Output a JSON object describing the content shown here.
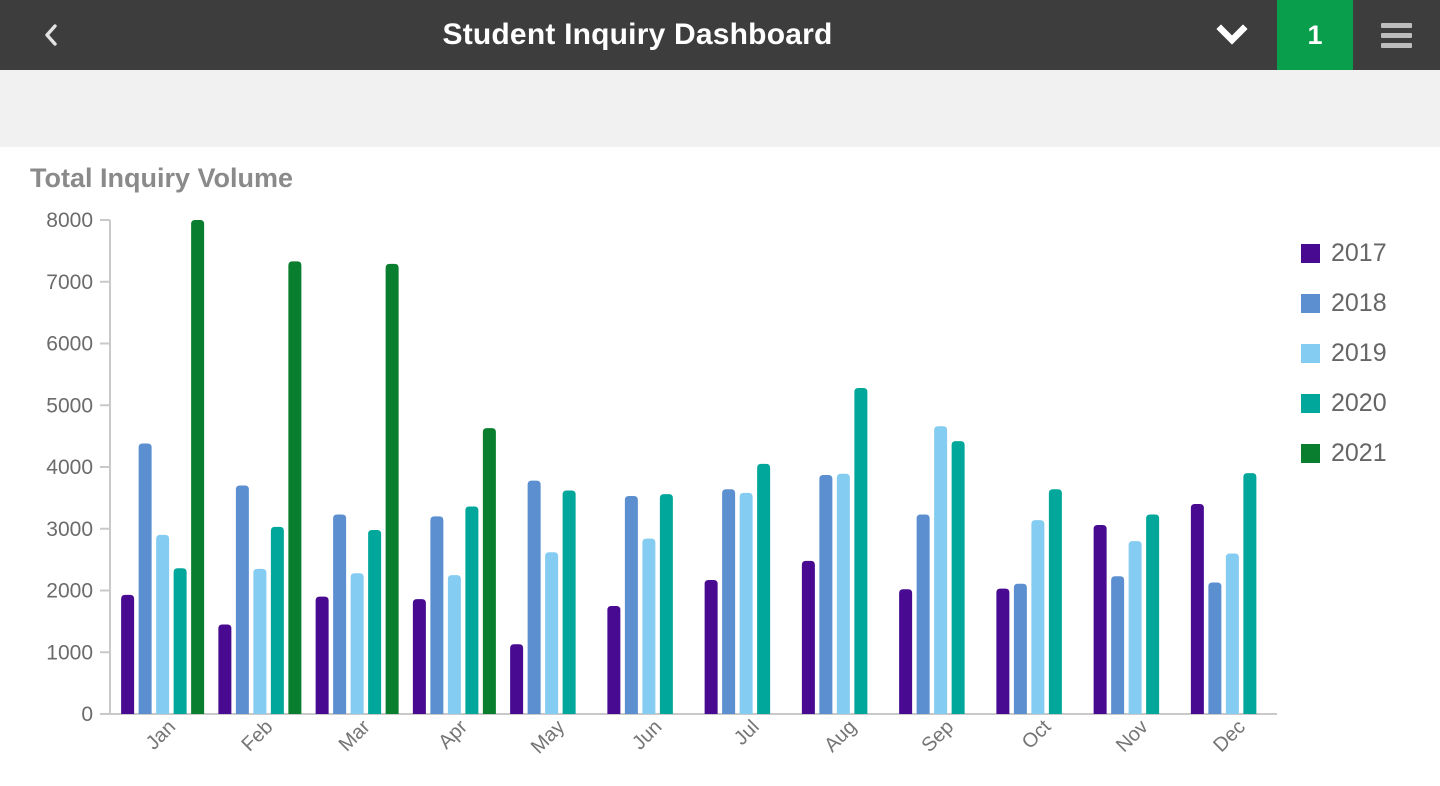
{
  "header": {
    "title": "Student Inquiry Dashboard",
    "page_badge": "1",
    "badge_color": "#089e4c",
    "bar_color": "#3d3d3d",
    "icons": [
      "chevron-left-icon",
      "chevron-down-icon",
      "hamburger-icon"
    ]
  },
  "chart_section": {
    "title": "Total Inquiry Volume"
  },
  "chart_data": {
    "type": "bar",
    "title": "Total Inquiry Volume",
    "categories": [
      "Jan",
      "Feb",
      "Mar",
      "Apr",
      "May",
      "Jun",
      "Jul",
      "Aug",
      "Sep",
      "Oct",
      "Nov",
      "Dec"
    ],
    "series": [
      {
        "name": "2017",
        "color": "#470a90",
        "values": [
          1930,
          1450,
          1900,
          1860,
          1130,
          1750,
          2170,
          2480,
          2020,
          2030,
          3060,
          3400
        ]
      },
      {
        "name": "2018",
        "color": "#5b8fd0",
        "values": [
          4380,
          3700,
          3230,
          3200,
          3780,
          3530,
          3640,
          3870,
          3230,
          2110,
          2230,
          2130
        ]
      },
      {
        "name": "2019",
        "color": "#84ccf1",
        "values": [
          2900,
          2350,
          2280,
          2250,
          2620,
          2840,
          3580,
          3890,
          4660,
          3140,
          2800,
          2600
        ]
      },
      {
        "name": "2020",
        "color": "#00a79a",
        "values": [
          2360,
          3030,
          2980,
          3360,
          3620,
          3560,
          4050,
          5280,
          4420,
          3640,
          3230,
          3900
        ]
      },
      {
        "name": "2021",
        "color": "#087e2e",
        "values": [
          8000,
          7330,
          7290,
          4630,
          null,
          null,
          null,
          null,
          null,
          null,
          null,
          null
        ]
      }
    ],
    "xlabel": "",
    "ylabel": "",
    "ylim": [
      0,
      8000
    ],
    "ytick_step": 1000,
    "grid": false,
    "legend_position": "right",
    "x_tick_rotation": -45
  }
}
